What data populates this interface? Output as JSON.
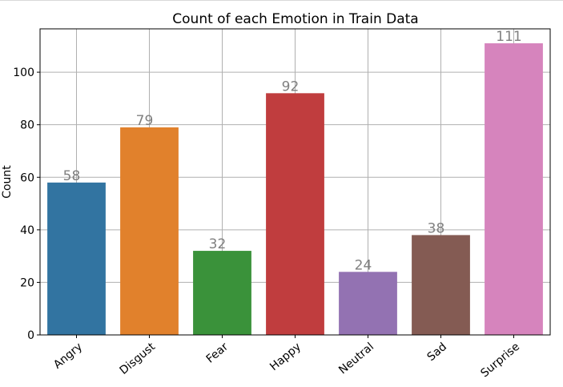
{
  "chart_data": {
    "type": "bar",
    "title": "Count of each Emotion in Train Data",
    "xlabel": "",
    "ylabel": "Count",
    "categories": [
      "Angry",
      "Disgust",
      "Fear",
      "Happy",
      "Neutral",
      "Sad",
      "Surprise"
    ],
    "values": [
      58,
      79,
      32,
      92,
      24,
      38,
      111
    ],
    "colors": [
      "#3274a1",
      "#e1812c",
      "#3a923a",
      "#c03d3e",
      "#9372b2",
      "#845b53",
      "#d684bd"
    ],
    "ylim": [
      0,
      116.5
    ],
    "yticks": [
      0,
      20,
      40,
      60,
      80,
      100
    ],
    "grid": true,
    "data_labels": true,
    "tick_label_rotation": -40
  }
}
